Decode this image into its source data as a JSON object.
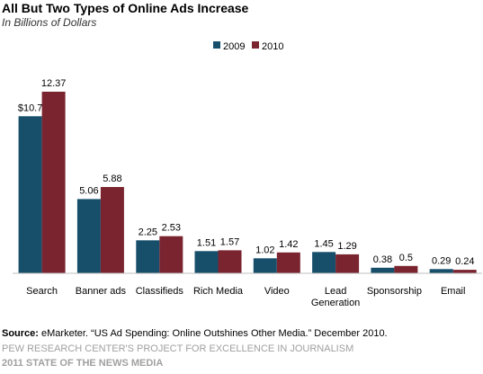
{
  "chart_data": {
    "type": "bar",
    "title": "All But Two Types of Online Ads Increase",
    "subtitle": "In Billions of Dollars",
    "categories": [
      "Search",
      "Banner ads",
      "Classifieds",
      "Rich Media",
      "Video",
      "Lead Generation",
      "Sponsorship",
      "Email"
    ],
    "series": [
      {
        "name": "2009",
        "color": "#174f6b",
        "values": [
          10.7,
          5.06,
          2.25,
          1.51,
          1.02,
          1.45,
          0.38,
          0.29
        ],
        "labels": [
          "$10.7",
          "5.06",
          "2.25",
          "1.51",
          "1.02",
          "1.45",
          "0.38",
          "0.29"
        ]
      },
      {
        "name": "2010",
        "color": "#7a2430",
        "values": [
          12.37,
          5.88,
          2.53,
          1.57,
          1.42,
          1.29,
          0.5,
          0.24
        ],
        "labels": [
          "12.37",
          "5.88",
          "2.53",
          "1.57",
          "1.42",
          "1.29",
          "0.5",
          "0.24"
        ]
      }
    ],
    "xlabel": "",
    "ylabel": "",
    "ylim": [
      0,
      12.37
    ],
    "grid": false,
    "legend": "top-right"
  },
  "source": {
    "prefix": "Source:",
    "text": " eMarketer. “US Ad Spending: Online Outshines Other Media.” December 2010."
  },
  "footer": {
    "org": "Pew Research Center's Project for Excellence in Journalism",
    "report": "2011 State of the News Media"
  }
}
